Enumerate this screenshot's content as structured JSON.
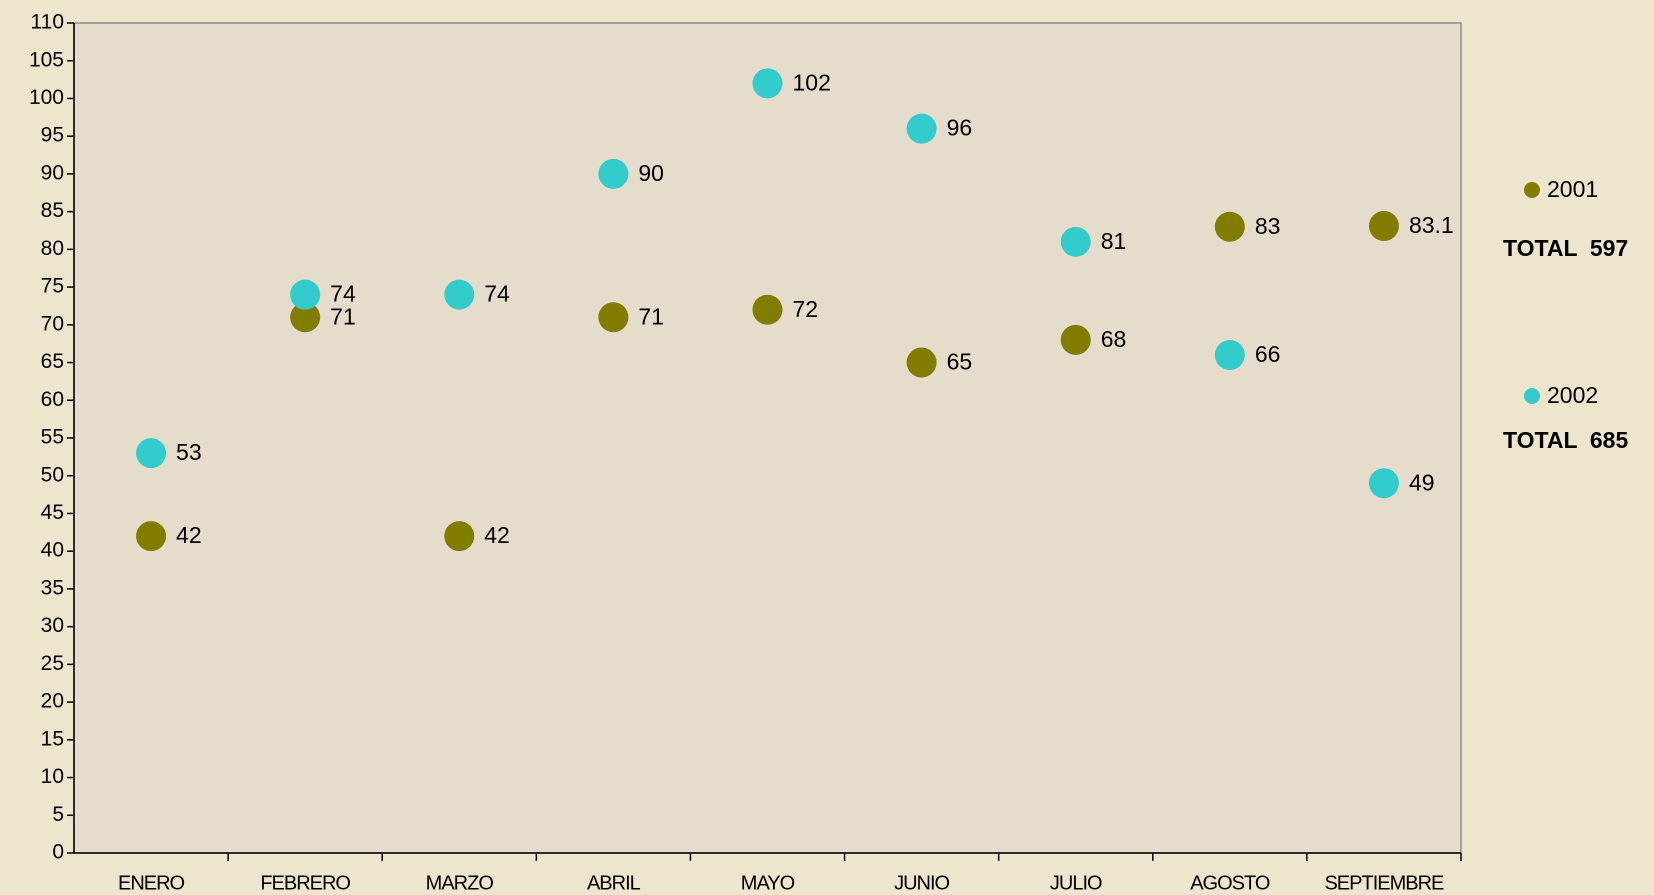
{
  "chart_data": {
    "type": "scatter",
    "categories": [
      "ENERO",
      "FEBRERO",
      "MARZO",
      "ABRIL",
      "MAYO",
      "JUNIO",
      "JULIO",
      "AGOSTO",
      "SEPTIEMBRE"
    ],
    "series": [
      {
        "name": "2001",
        "color": "#807d00",
        "values": [
          42,
          71,
          42,
          71,
          72,
          65,
          68,
          83,
          83.1
        ],
        "total": "TOTAL  597"
      },
      {
        "name": "2002",
        "color": "#33cccc",
        "values": [
          53,
          74,
          74,
          90,
          102,
          96,
          81,
          66,
          49
        ],
        "total": "TOTAL  685"
      }
    ],
    "ylim": [
      0,
      110
    ],
    "yticks": [
      0,
      5,
      10,
      15,
      20,
      25,
      30,
      35,
      40,
      45,
      50,
      55,
      60,
      65,
      70,
      75,
      80,
      85,
      90,
      95,
      100,
      105,
      110
    ],
    "grid": false
  }
}
